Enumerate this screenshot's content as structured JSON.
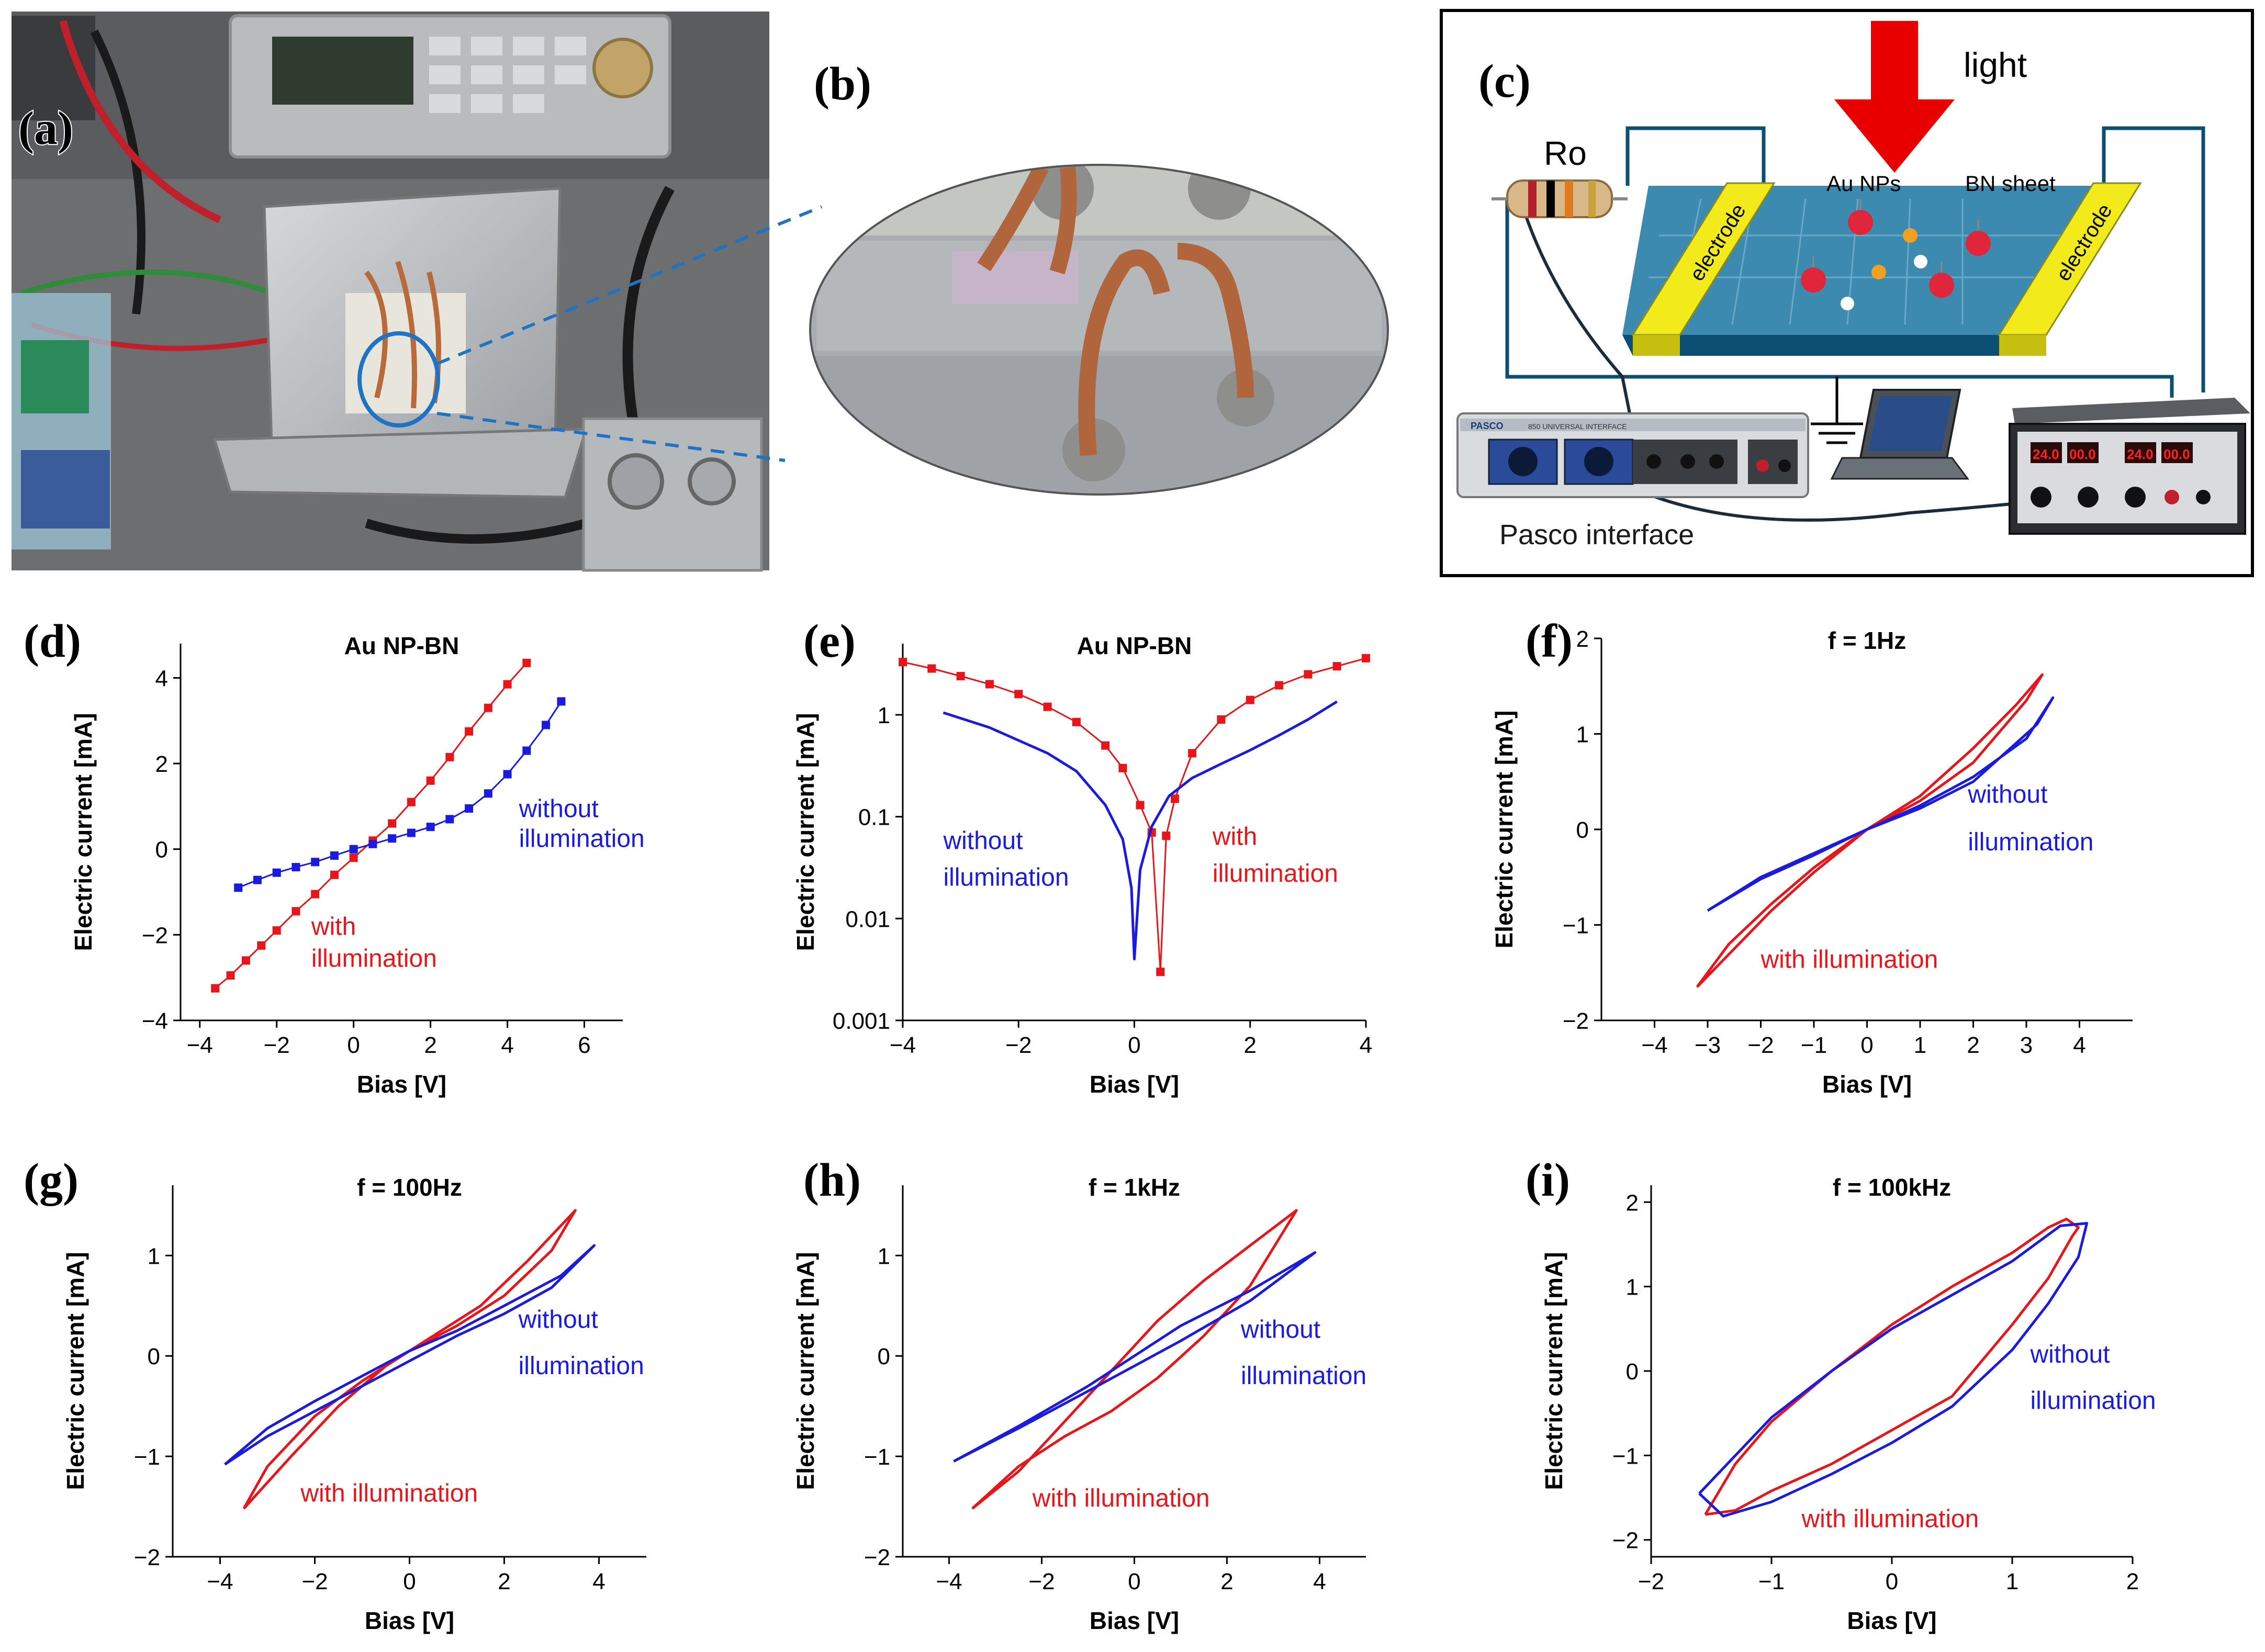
{
  "panel_labels": {
    "a": "(a)",
    "b": "(b)",
    "c": "(c)",
    "d": "(d)",
    "e": "(e)",
    "f": "(f)",
    "g": "(g)",
    "h": "(h)",
    "i": "(i)"
  },
  "schematic": {
    "light": "light",
    "resistor": "Ro",
    "au_nps": "Au NPs",
    "bn_sheet": "BN sheet",
    "electrode_left": "electrode",
    "electrode_right": "electrode",
    "interface": "Pasco interface",
    "interface_brand": "PASCO",
    "interface_model": "850 UNIVERSAL INTERFACE",
    "psu_display": [
      "24.0",
      "00.0",
      "24.0",
      "00.0"
    ]
  },
  "colors": {
    "with": "#e8151b",
    "without": "#1a1ae0",
    "light_arrow": "#e80000",
    "electrode": "#f2ea1a",
    "sheet": "#3d8ab0",
    "frame": "#0d4f72"
  },
  "chart_data": [
    {
      "panel": "d",
      "type": "line",
      "title": "Au NP-BN",
      "xlabel": "Bias [V]",
      "ylabel": "Electric current [mA]",
      "xlim": [
        -4.5,
        7
      ],
      "ylim": [
        -4,
        4.8
      ],
      "xticks": [
        -4,
        -2,
        0,
        2,
        4,
        6
      ],
      "yticks": [
        -4,
        -2,
        0,
        2,
        4
      ],
      "yscale": "linear",
      "annotations": [
        {
          "text": "without",
          "series": "without",
          "x": 4.3,
          "y": 0.75
        },
        {
          "text": "illumination",
          "series": "without",
          "x": 4.3,
          "y": 0.05
        },
        {
          "text": "with",
          "series": "with",
          "x": -1.1,
          "y": -2.0
        },
        {
          "text": "illumination",
          "series": "with",
          "x": -1.1,
          "y": -2.75
        }
      ],
      "series": [
        {
          "name": "with illumination",
          "color": "with",
          "marker": "square",
          "x": [
            -3.6,
            -3.2,
            -2.8,
            -2.4,
            -2.0,
            -1.5,
            -1.0,
            -0.5,
            0,
            0.5,
            1.0,
            1.5,
            2.0,
            2.5,
            3.0,
            3.5,
            4.0,
            4.5
          ],
          "y": [
            -3.25,
            -2.95,
            -2.6,
            -2.25,
            -1.9,
            -1.45,
            -1.05,
            -0.6,
            -0.2,
            0.2,
            0.6,
            1.1,
            1.6,
            2.15,
            2.75,
            3.3,
            3.85,
            4.35
          ]
        },
        {
          "name": "without illumination",
          "color": "without",
          "marker": "square",
          "x": [
            -3.0,
            -2.5,
            -2.0,
            -1.5,
            -1.0,
            -0.5,
            0,
            0.5,
            1.0,
            1.5,
            2.0,
            2.5,
            3.0,
            3.5,
            4.0,
            4.5,
            5.0,
            5.4
          ],
          "y": [
            -0.9,
            -0.72,
            -0.55,
            -0.42,
            -0.3,
            -0.15,
            0.0,
            0.12,
            0.25,
            0.38,
            0.52,
            0.7,
            0.95,
            1.3,
            1.75,
            2.3,
            2.9,
            3.45
          ]
        }
      ]
    },
    {
      "panel": "e",
      "type": "line",
      "title": "Au NP-BN",
      "xlabel": "Bias [V]",
      "ylabel": "Electric current [mA]",
      "xlim": [
        -4,
        4
      ],
      "ylim": [
        0.001,
        5
      ],
      "xticks": [
        -4,
        -2,
        0,
        2,
        4
      ],
      "yticks": [
        0.001,
        0.01,
        0.1,
        1
      ],
      "ytick_labels": [
        "0.001",
        "0.01",
        "0.1",
        "1"
      ],
      "yscale": "log",
      "annotations": [
        {
          "text": "without",
          "series": "without",
          "x": -3.3,
          "y": 0.048
        },
        {
          "text": "illumination",
          "series": "without",
          "x": -3.3,
          "y": 0.021
        },
        {
          "text": "with",
          "series": "with",
          "x": 1.35,
          "y": 0.053
        },
        {
          "text": "illumination",
          "series": "with",
          "x": 1.35,
          "y": 0.023
        }
      ],
      "series": [
        {
          "name": "with illumination",
          "color": "with",
          "marker": "square",
          "x": [
            -4.0,
            -3.5,
            -3.0,
            -2.5,
            -2.0,
            -1.5,
            -1.0,
            -0.5,
            -0.2,
            0.1,
            0.3,
            0.45,
            0.55,
            0.7,
            1.0,
            1.5,
            2.0,
            2.5,
            3.0,
            3.5,
            4.0
          ],
          "y": [
            3.3,
            2.85,
            2.4,
            2.0,
            1.6,
            1.2,
            0.85,
            0.5,
            0.3,
            0.13,
            0.07,
            0.003,
            0.065,
            0.15,
            0.42,
            0.9,
            1.4,
            1.95,
            2.5,
            3.0,
            3.6
          ]
        },
        {
          "name": "without illumination",
          "color": "without",
          "marker": "none",
          "x": [
            -3.3,
            -2.5,
            -1.5,
            -1.0,
            -0.5,
            -0.2,
            -0.05,
            0,
            0.1,
            0.3,
            0.6,
            1.0,
            1.5,
            2.0,
            2.5,
            3.0,
            3.5
          ],
          "y": [
            1.05,
            0.75,
            0.42,
            0.28,
            0.13,
            0.06,
            0.02,
            0.004,
            0.03,
            0.08,
            0.16,
            0.24,
            0.33,
            0.45,
            0.63,
            0.9,
            1.35
          ]
        }
      ]
    },
    {
      "panel": "f",
      "type": "line",
      "title": "f = 1Hz",
      "xlabel": "Bias [V]",
      "ylabel": "Electric current [mA]",
      "xlim": [
        -5,
        5
      ],
      "ylim": [
        -2,
        2
      ],
      "xticks": [
        -4,
        -3,
        -2,
        -1,
        0,
        1,
        2,
        3,
        4
      ],
      "yticks": [
        -2,
        -1,
        0,
        1,
        2
      ],
      "yscale": "linear",
      "annotations": [
        {
          "text": "without",
          "series": "without",
          "x": 1.9,
          "y": 0.28
        },
        {
          "text": "illumination",
          "series": "without",
          "x": 1.9,
          "y": -0.22
        },
        {
          "text": "with illumination",
          "series": "with",
          "x": -2.0,
          "y": -1.45
        }
      ],
      "series": [
        {
          "name": "with illumination",
          "color": "with",
          "marker": "none",
          "x": [
            -3.2,
            -2.5,
            -1.8,
            -1.0,
            0,
            1.0,
            2.0,
            2.8,
            3.3,
            3.0,
            2.0,
            1.0,
            0,
            -1.0,
            -1.8,
            -2.6,
            -3.2
          ],
          "y": [
            -1.65,
            -1.25,
            -0.85,
            -0.45,
            0,
            0.35,
            0.85,
            1.3,
            1.62,
            1.35,
            0.7,
            0.3,
            0,
            -0.4,
            -0.78,
            -1.2,
            -1.65
          ]
        },
        {
          "name": "without illumination",
          "color": "without",
          "marker": "none",
          "x": [
            -3.0,
            -2.0,
            -1.0,
            0,
            1.0,
            2.0,
            3.0,
            3.5,
            3.2,
            2.0,
            1.0,
            0,
            -1.0,
            -2.0,
            -3.0
          ],
          "y": [
            -0.85,
            -0.52,
            -0.27,
            0,
            0.25,
            0.55,
            0.95,
            1.38,
            1.1,
            0.5,
            0.22,
            0,
            -0.25,
            -0.5,
            -0.85
          ]
        }
      ]
    },
    {
      "panel": "g",
      "type": "line",
      "title": "f = 100Hz",
      "xlabel": "Bias [V]",
      "ylabel": "Electric current [mA]",
      "xlim": [
        -5,
        5
      ],
      "ylim": [
        -2,
        1.7
      ],
      "xticks": [
        -4,
        -2,
        0,
        2,
        4
      ],
      "yticks": [
        -2,
        -1,
        0,
        1
      ],
      "yscale": "linear",
      "annotations": [
        {
          "text": "without",
          "series": "without",
          "x": 2.3,
          "y": 0.28
        },
        {
          "text": "illumination",
          "series": "without",
          "x": 2.3,
          "y": -0.18
        },
        {
          "text": "with illumination",
          "series": "with",
          "x": -2.3,
          "y": -1.45
        }
      ],
      "series": [
        {
          "name": "with illumination",
          "color": "with",
          "marker": "none",
          "x": [
            -3.5,
            -2.5,
            -1.5,
            -0.5,
            0.5,
            1.5,
            2.5,
            3.5,
            3.0,
            2.0,
            1.0,
            0,
            -1.0,
            -2.0,
            -3.0,
            -3.5
          ],
          "y": [
            -1.52,
            -1.0,
            -0.5,
            -0.1,
            0.2,
            0.5,
            0.95,
            1.45,
            1.05,
            0.6,
            0.3,
            0.05,
            -0.25,
            -0.6,
            -1.1,
            -1.52
          ]
        },
        {
          "name": "without illumination",
          "color": "without",
          "marker": "none",
          "x": [
            -3.9,
            -3.0,
            -2.0,
            -1.0,
            0,
            1.0,
            2.0,
            3.0,
            3.9,
            3.2,
            2.0,
            1.0,
            0,
            -1.0,
            -2.0,
            -3.0,
            -3.9
          ],
          "y": [
            -1.08,
            -0.8,
            -0.55,
            -0.3,
            -0.05,
            0.2,
            0.42,
            0.68,
            1.1,
            0.8,
            0.5,
            0.25,
            0.05,
            -0.2,
            -0.45,
            -0.72,
            -1.08
          ]
        }
      ]
    },
    {
      "panel": "h",
      "type": "line",
      "title": "f = 1kHz",
      "xlabel": "Bias [V]",
      "ylabel": "Electric current [mA]",
      "xlim": [
        -5,
        5
      ],
      "ylim": [
        -2,
        1.7
      ],
      "xticks": [
        -4,
        -2,
        0,
        2,
        4
      ],
      "yticks": [
        -2,
        -1,
        0,
        1
      ],
      "yscale": "linear",
      "annotations": [
        {
          "text": "without",
          "series": "without",
          "x": 2.3,
          "y": 0.18
        },
        {
          "text": "illumination",
          "series": "without",
          "x": 2.3,
          "y": -0.28
        },
        {
          "text": "with illumination",
          "series": "with",
          "x": -2.2,
          "y": -1.5
        }
      ],
      "series": [
        {
          "name": "with illumination",
          "color": "with",
          "marker": "none",
          "x": [
            -3.5,
            -2.5,
            -1.5,
            -0.5,
            0.5,
            1.5,
            2.5,
            3.5,
            2.5,
            1.5,
            0.5,
            -0.5,
            -1.5,
            -2.5,
            -3.5
          ],
          "y": [
            -1.52,
            -1.15,
            -0.65,
            -0.15,
            0.35,
            0.75,
            1.1,
            1.45,
            0.7,
            0.2,
            -0.22,
            -0.55,
            -0.8,
            -1.1,
            -1.52
          ]
        },
        {
          "name": "without illumination",
          "color": "without",
          "marker": "none",
          "x": [
            -3.9,
            -2.5,
            -1.0,
            0,
            1.0,
            2.5,
            3.9,
            2.5,
            1.0,
            0,
            -1.0,
            -2.5,
            -3.9
          ],
          "y": [
            -1.05,
            -0.7,
            -0.3,
            0.0,
            0.3,
            0.65,
            1.03,
            0.55,
            0.15,
            -0.1,
            -0.35,
            -0.72,
            -1.05
          ]
        }
      ]
    },
    {
      "panel": "i",
      "type": "line",
      "title": "f = 100kHz",
      "xlabel": "Bias [V]",
      "ylabel": "Electric current [mA]",
      "xlim": [
        -2,
        2
      ],
      "ylim": [
        -2.2,
        2.2
      ],
      "xticks": [
        -2,
        -1,
        0,
        1,
        2
      ],
      "yticks": [
        -2,
        -1,
        0,
        1,
        2
      ],
      "yscale": "linear",
      "annotations": [
        {
          "text": "without",
          "series": "without",
          "x": 1.15,
          "y": 0.1
        },
        {
          "text": "illumination",
          "series": "without",
          "x": 1.15,
          "y": -0.45
        },
        {
          "text": "with illumination",
          "series": "with",
          "x": -0.75,
          "y": -1.85
        }
      ],
      "series": [
        {
          "name": "with illumination",
          "color": "with",
          "marker": "none",
          "x": [
            -1.55,
            -1.3,
            -1.0,
            -0.5,
            0,
            0.5,
            1.0,
            1.3,
            1.5,
            1.55,
            1.45,
            1.3,
            1.0,
            0.5,
            0,
            -0.5,
            -1.0,
            -1.3,
            -1.55
          ],
          "y": [
            -1.7,
            -1.65,
            -1.42,
            -1.1,
            -0.7,
            -0.3,
            0.55,
            1.1,
            1.6,
            1.7,
            1.8,
            1.7,
            1.4,
            1.0,
            0.55,
            0.0,
            -0.6,
            -1.1,
            -1.7
          ]
        },
        {
          "name": "without illumination",
          "color": "without",
          "marker": "none",
          "x": [
            -1.6,
            -1.4,
            -1.0,
            -0.5,
            0,
            0.5,
            1.0,
            1.3,
            1.55,
            1.62,
            1.4,
            1.0,
            0.5,
            0,
            -0.5,
            -1.0,
            -1.4,
            -1.6
          ],
          "y": [
            -1.45,
            -1.72,
            -1.55,
            -1.22,
            -0.85,
            -0.42,
            0.25,
            0.8,
            1.35,
            1.75,
            1.72,
            1.3,
            0.9,
            0.5,
            0.0,
            -0.55,
            -1.15,
            -1.45
          ]
        }
      ]
    }
  ]
}
